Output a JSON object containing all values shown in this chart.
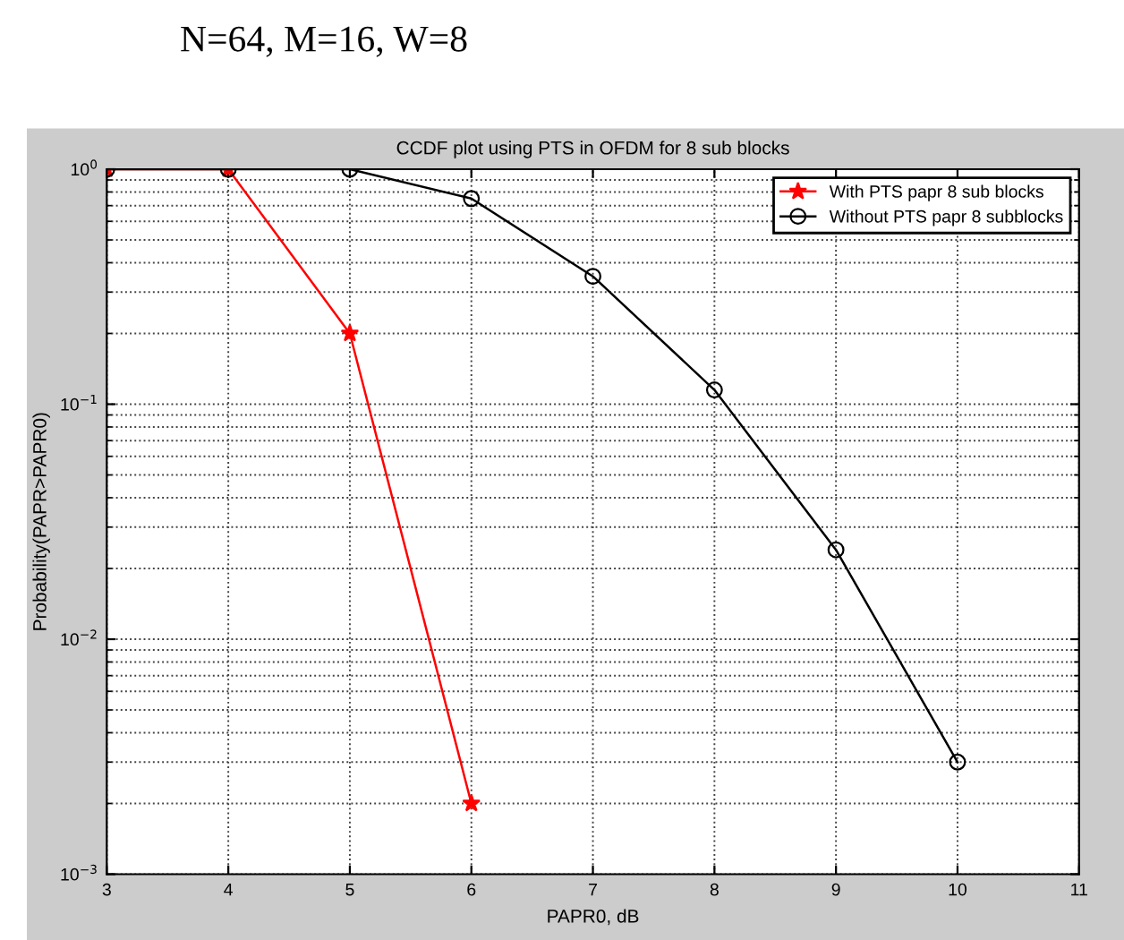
{
  "chart_data": {
    "type": "line",
    "title": "N=64, M=16, W=8",
    "subtitle": "CCDF plot using PTS in OFDM for 8 sub blocks",
    "xlabel": "PAPR0, dB",
    "ylabel": "Probability(PAPR>PAPR0)",
    "log": "y",
    "xlim": [
      3,
      11
    ],
    "xticks": [
      3,
      4,
      5,
      6,
      7,
      8,
      9,
      10,
      11
    ],
    "ylim": [
      0.001,
      1
    ],
    "yticks": [
      {
        "value": 0.001,
        "label": "10$^{−3}$"
      },
      {
        "value": 0.01,
        "label": "10$^{−2}$"
      },
      {
        "value": 0.1,
        "label": "10$^{−1}$"
      },
      {
        "value": 1,
        "label": "10$^{0}$"
      }
    ],
    "grid": true,
    "legend": "top right",
    "line_style": "solid",
    "series": [
      {
        "name": "With PTS papr 8 sub blocks",
        "color": "#ff0000",
        "marker": "star",
        "x": [
          3,
          4,
          5,
          6
        ],
        "values": [
          1,
          1,
          0.2,
          0.002
        ]
      },
      {
        "name": "Without PTS papr 8 subblocks",
        "color": "#000000",
        "marker": "circle",
        "x": [
          3,
          4,
          5,
          6,
          7,
          8,
          9,
          10
        ],
        "values": [
          1,
          1,
          1,
          0.75,
          0.35,
          0.115,
          0.024,
          0.003
        ]
      }
    ]
  }
}
